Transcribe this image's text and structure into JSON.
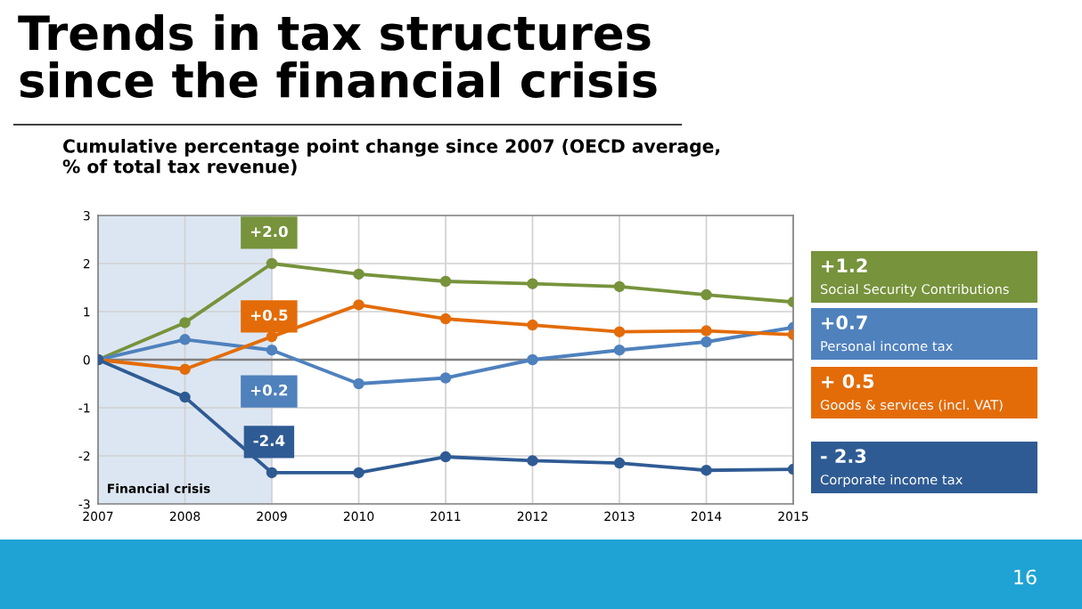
{
  "chart_data": {
    "type": "line",
    "title": "Trends in tax structures\nsince the financial crisis",
    "subtitle": "Cumulative percentage point change since 2007 (OECD average,\n% of total tax revenue)",
    "x": [
      2007,
      2008,
      2009,
      2010,
      2011,
      2012,
      2013,
      2014,
      2015
    ],
    "series": [
      {
        "name": "Social Security Contributions",
        "color": "#77933c",
        "values": [
          0,
          0.77,
          2.0,
          1.78,
          1.63,
          1.58,
          1.52,
          1.35,
          1.2
        ]
      },
      {
        "name": "Personal income tax",
        "color": "#4f81bd",
        "values": [
          0,
          0.42,
          0.2,
          -0.5,
          -0.38,
          0,
          0.2,
          0.37,
          0.67
        ]
      },
      {
        "name": "Goods & services (incl. VAT)",
        "color": "#e36c09",
        "values": [
          0,
          -0.2,
          0.48,
          1.14,
          0.85,
          0.72,
          0.58,
          0.6,
          0.52
        ]
      },
      {
        "name": "Corporate income tax",
        "color": "#2f5b94",
        "values": [
          0,
          -0.78,
          -2.35,
          -2.35,
          -2.02,
          -2.1,
          -2.15,
          -2.3,
          -2.28
        ]
      }
    ],
    "xlim": [
      2007,
      2015
    ],
    "xticks": [
      2007,
      2008,
      2009,
      2010,
      2011,
      2012,
      2013,
      2014,
      2015
    ],
    "ylim": [
      -3,
      3
    ],
    "yticks": [
      -3,
      -2,
      -1,
      0,
      1,
      2,
      3
    ],
    "grid": true,
    "marker": "circle",
    "line_style": "solid",
    "legend": "right",
    "bands": [
      {
        "axis": "x",
        "from": 2007,
        "to": 2009,
        "label": "Financial crisis",
        "color": "#dce6f2"
      }
    ],
    "ref_lines": [
      {
        "axis": "y",
        "value": 0,
        "label": null,
        "color": "#808080"
      }
    ],
    "annotations": [
      "+2.0",
      "+0.5",
      "+0.2",
      "-2.4",
      "+1.2",
      "+0.7",
      "+ 0.5",
      "- 2.3",
      "16"
    ]
  }
}
